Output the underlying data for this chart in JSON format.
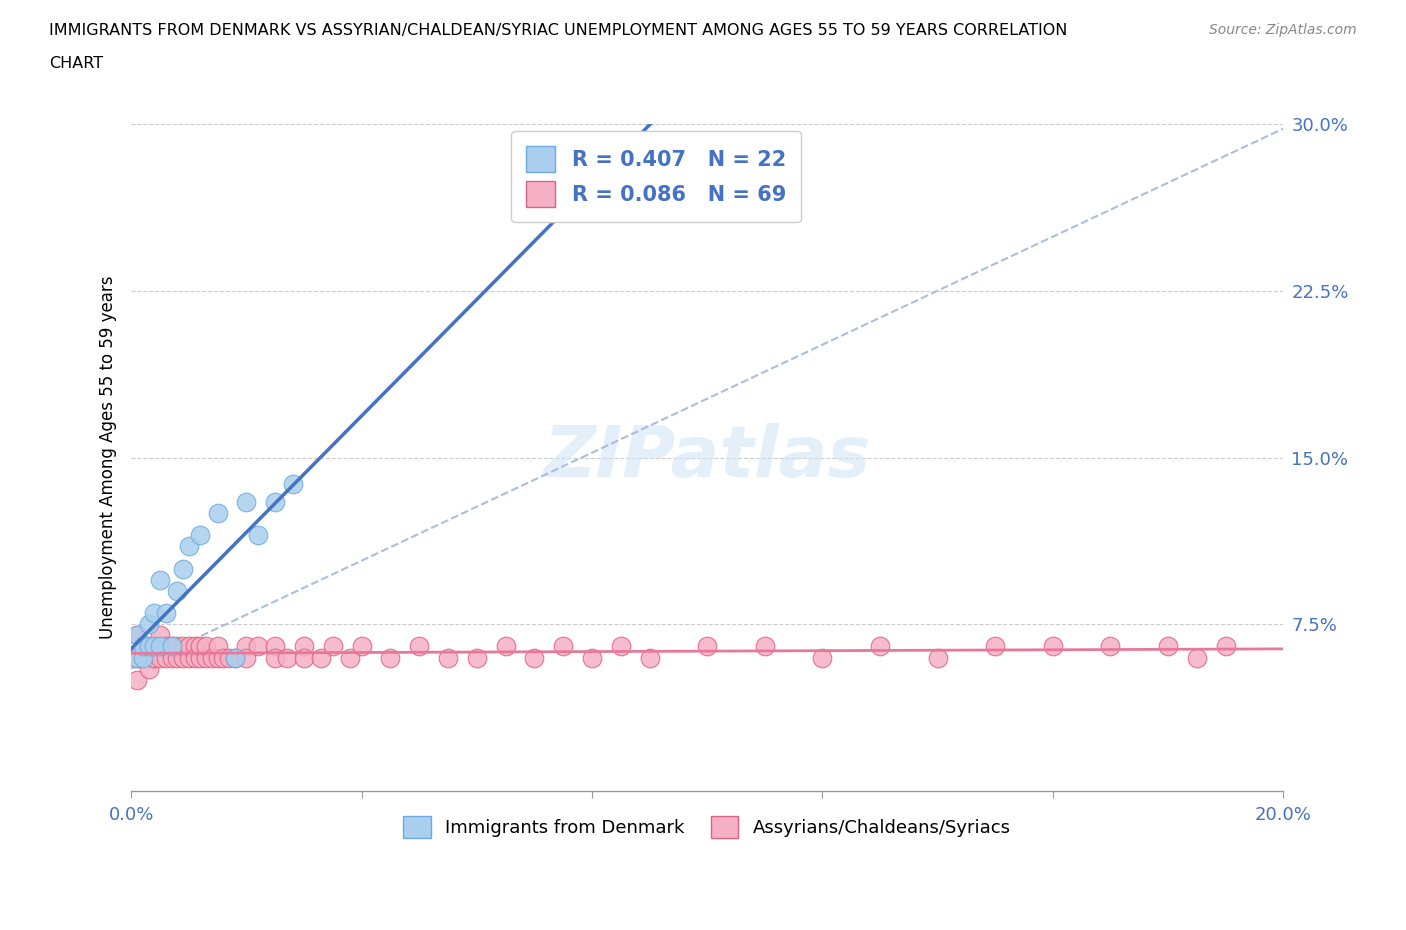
{
  "title_line1": "IMMIGRANTS FROM DENMARK VS ASSYRIAN/CHALDEAN/SYRIAC UNEMPLOYMENT AMONG AGES 55 TO 59 YEARS CORRELATION",
  "title_line2": "CHART",
  "source": "Source: ZipAtlas.com",
  "ylabel": "Unemployment Among Ages 55 to 59 years",
  "xlim": [
    0.0,
    0.2
  ],
  "ylim": [
    0.0,
    0.3
  ],
  "ytick_vals": [
    0.0,
    0.075,
    0.15,
    0.225,
    0.3
  ],
  "ytick_labels": [
    "",
    "7.5%",
    "15.0%",
    "22.5%",
    "30.0%"
  ],
  "xtick_vals": [
    0.0,
    0.04,
    0.08,
    0.12,
    0.16,
    0.2
  ],
  "trend_dk_color": "#4472c4",
  "trend_as_color": "#e87898",
  "trend_dashed_color": "#a0b8d8",
  "denmark_fill": "#aacfee",
  "denmark_edge": "#6aaae0",
  "assyrian_fill": "#f5b0c5",
  "assyrian_edge": "#e06080",
  "R_dk": 0.407,
  "N_dk": 22,
  "R_as": 0.086,
  "N_as": 69,
  "label_dk": "Immigrants from Denmark",
  "label_as": "Assyrians/Chaldeans/Syriacs",
  "watermark": "ZIPatlas",
  "denmark_x": [
    0.001,
    0.001,
    0.002,
    0.002,
    0.003,
    0.003,
    0.004,
    0.004,
    0.005,
    0.005,
    0.006,
    0.007,
    0.008,
    0.009,
    0.01,
    0.012,
    0.015,
    0.018,
    0.02,
    0.022,
    0.025,
    0.028
  ],
  "denmark_y": [
    0.06,
    0.07,
    0.06,
    0.065,
    0.065,
    0.075,
    0.065,
    0.08,
    0.065,
    0.095,
    0.08,
    0.065,
    0.09,
    0.1,
    0.11,
    0.115,
    0.125,
    0.06,
    0.13,
    0.115,
    0.13,
    0.138
  ],
  "assyrian_x": [
    0.001,
    0.001,
    0.001,
    0.002,
    0.002,
    0.003,
    0.003,
    0.003,
    0.004,
    0.004,
    0.004,
    0.005,
    0.005,
    0.005,
    0.006,
    0.006,
    0.007,
    0.007,
    0.008,
    0.008,
    0.009,
    0.009,
    0.01,
    0.01,
    0.011,
    0.011,
    0.012,
    0.012,
    0.013,
    0.013,
    0.014,
    0.015,
    0.015,
    0.016,
    0.017,
    0.018,
    0.02,
    0.02,
    0.022,
    0.025,
    0.025,
    0.027,
    0.03,
    0.03,
    0.033,
    0.035,
    0.038,
    0.04,
    0.045,
    0.05,
    0.055,
    0.06,
    0.065,
    0.07,
    0.075,
    0.08,
    0.085,
    0.09,
    0.1,
    0.11,
    0.12,
    0.13,
    0.14,
    0.15,
    0.16,
    0.17,
    0.18,
    0.185,
    0.19
  ],
  "assyrian_y": [
    0.06,
    0.07,
    0.05,
    0.06,
    0.065,
    0.065,
    0.06,
    0.055,
    0.06,
    0.065,
    0.06,
    0.06,
    0.065,
    0.07,
    0.06,
    0.065,
    0.065,
    0.06,
    0.06,
    0.065,
    0.06,
    0.065,
    0.06,
    0.065,
    0.065,
    0.06,
    0.06,
    0.065,
    0.06,
    0.065,
    0.06,
    0.06,
    0.065,
    0.06,
    0.06,
    0.06,
    0.065,
    0.06,
    0.065,
    0.065,
    0.06,
    0.06,
    0.065,
    0.06,
    0.06,
    0.065,
    0.06,
    0.065,
    0.06,
    0.065,
    0.06,
    0.06,
    0.065,
    0.06,
    0.065,
    0.06,
    0.065,
    0.06,
    0.065,
    0.065,
    0.06,
    0.065,
    0.06,
    0.065,
    0.065,
    0.065,
    0.065,
    0.06,
    0.065
  ],
  "dashed_line_x": [
    0.0,
    0.2
  ],
  "dashed_line_y": [
    0.055,
    0.298
  ]
}
